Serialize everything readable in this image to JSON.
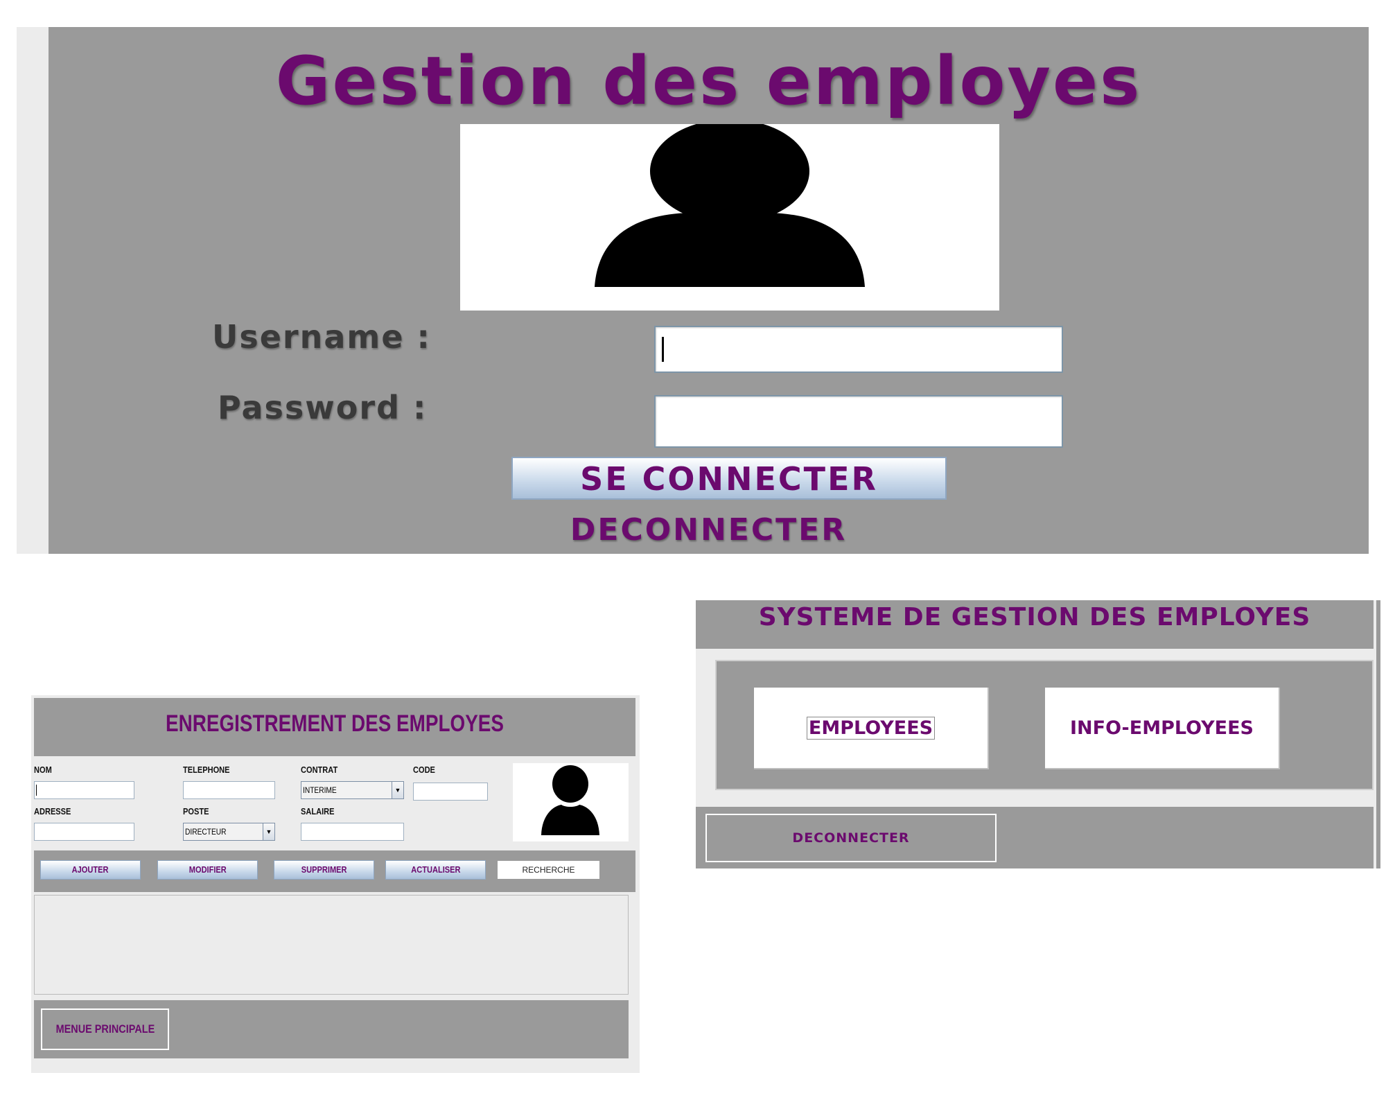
{
  "login": {
    "title": "Gestion des employes",
    "username_label": "Username :",
    "password_label": "Password :",
    "username_value": "",
    "password_value": "",
    "connect_button": "SE CONNECTER",
    "disconnect_link": "DECONNECTER",
    "avatar_icon": "user-silhouette-icon"
  },
  "registration": {
    "title": "ENREGISTREMENT DES EMPLOYES",
    "fields": {
      "nom": {
        "label": "NOM",
        "value": ""
      },
      "telephone": {
        "label": "TELEPHONE",
        "value": ""
      },
      "contrat": {
        "label": "CONTRAT",
        "value": "INTERIME"
      },
      "code": {
        "label": "CODE",
        "value": ""
      },
      "adresse": {
        "label": "ADRESSE",
        "value": ""
      },
      "poste": {
        "label": "POSTE",
        "value": "DIRECTEUR"
      },
      "salaire": {
        "label": "SALAIRE",
        "value": ""
      }
    },
    "buttons": {
      "add": "AJOUTER",
      "edit": "MODIFIER",
      "delete": "SUPPRIMER",
      "refresh": "ACTUALISER",
      "search": "RECHERCHE"
    },
    "menu_button": "MENUE PRINCIPALE",
    "avatar_icon": "user-silhouette-icon"
  },
  "main_menu": {
    "title": "SYSTEME DE GESTION DES EMPLOYES",
    "employees_button": "EMPLOYEES",
    "info_button": "INFO-EMPLOYEES",
    "logout_button": "DECONNECTER"
  },
  "colors": {
    "accent": "#6b0a6e",
    "panel_gray": "#9a9a9a",
    "window_bg": "#ececec"
  }
}
